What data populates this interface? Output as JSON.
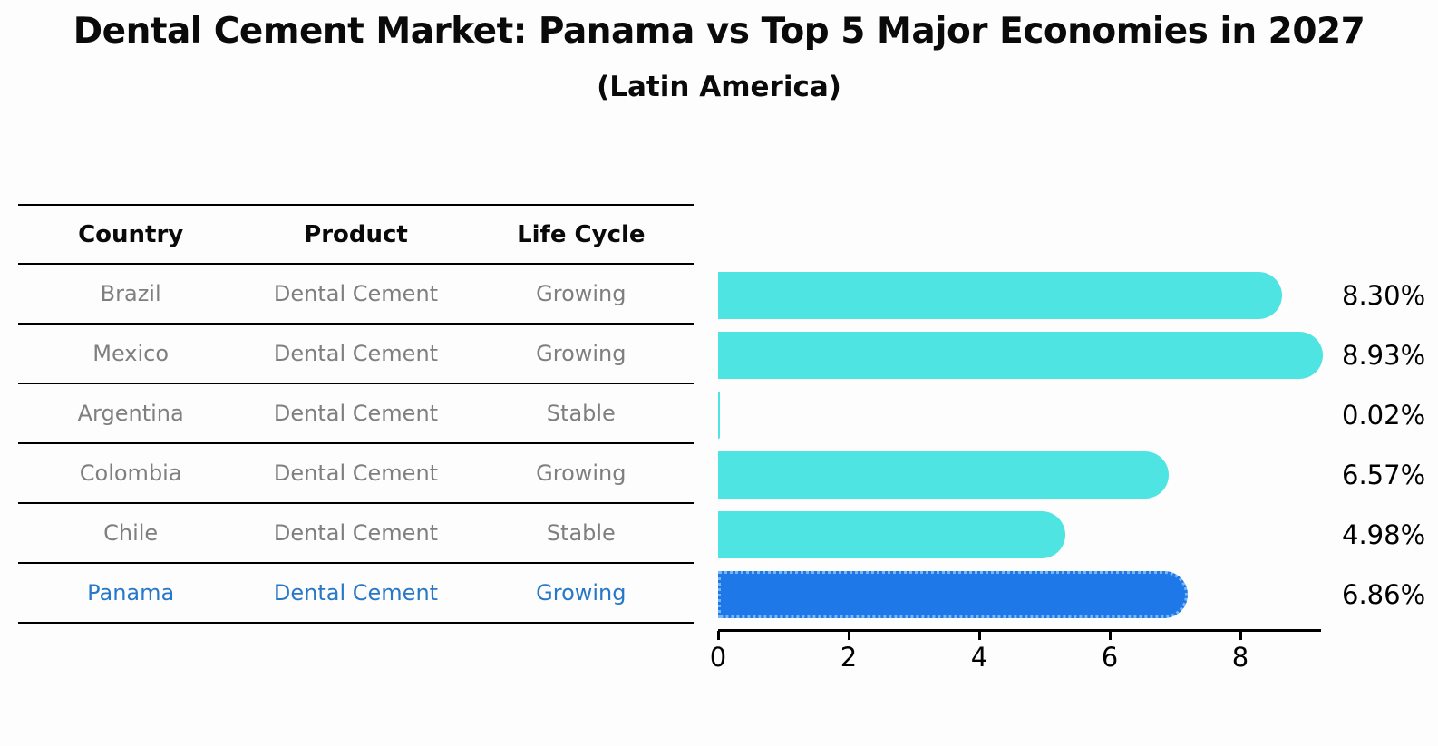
{
  "title": "Dental Cement Market: Panama vs Top 5 Major Economies in 2027",
  "subtitle": "(Latin America)",
  "table": {
    "headers": [
      "Country",
      "Product",
      "Life Cycle"
    ],
    "rows": [
      {
        "country": "Brazil",
        "product": "Dental Cement",
        "life_cycle": "Growing",
        "highlight": false
      },
      {
        "country": "Mexico",
        "product": "Dental Cement",
        "life_cycle": "Growing",
        "highlight": false
      },
      {
        "country": "Argentina",
        "product": "Dental Cement",
        "life_cycle": "Stable",
        "highlight": false
      },
      {
        "country": "Colombia",
        "product": "Dental Cement",
        "life_cycle": "Growing",
        "highlight": false
      },
      {
        "country": "Chile",
        "product": "Dental Cement",
        "life_cycle": "Stable",
        "highlight": false
      },
      {
        "country": "Panama",
        "product": "Dental Cement",
        "life_cycle": "Growing",
        "highlight": true
      }
    ]
  },
  "chart_data": {
    "type": "bar",
    "orientation": "horizontal",
    "title": "Dental Cement Market: Panama vs Top 5 Major Economies in 2027",
    "subtitle": "(Latin America)",
    "categories": [
      "Brazil",
      "Mexico",
      "Argentina",
      "Colombia",
      "Chile",
      "Panama"
    ],
    "values": [
      8.3,
      8.93,
      0.02,
      6.57,
      4.98,
      6.86
    ],
    "value_labels": [
      "8.30%",
      "8.93%",
      "0.02%",
      "6.57%",
      "4.98%",
      "6.86%"
    ],
    "x_ticks": [
      "0",
      "2",
      "4",
      "6",
      "8"
    ],
    "x_tick_values": [
      0,
      2,
      4,
      6,
      8
    ],
    "xlim": [
      0,
      9.3
    ],
    "grid": false,
    "legend": false,
    "highlight_category": "Panama"
  },
  "colors": {
    "bar_default": "#4de4e2",
    "bar_highlight": "#1e78e8",
    "bar_highlight_border": "#79b6f5",
    "row_text": "#7f7f7f",
    "highlight_text": "#2878c8",
    "header_text": "#0a0a0a",
    "axis": "#000000"
  }
}
